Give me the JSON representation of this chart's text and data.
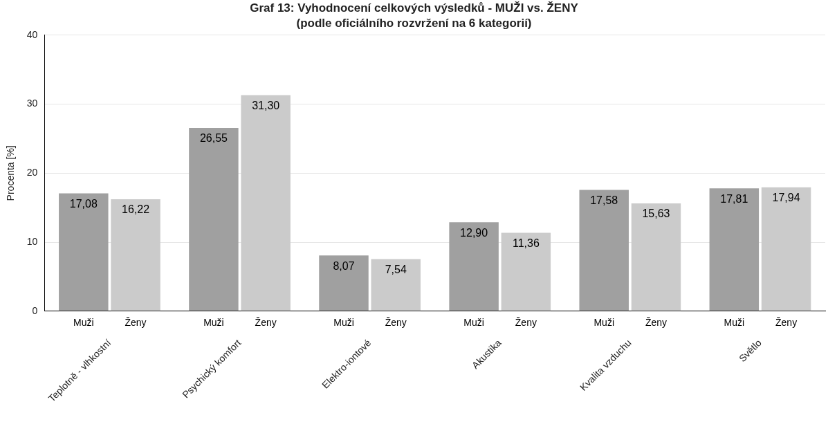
{
  "chart_data": {
    "type": "bar",
    "title": "Graf 13: Vyhodnocení celkových výsledků - MUŽI vs. ŽENY",
    "subtitle": "(podle oficiálního rozvržení na 6 kategorií)",
    "ylabel": "Procenta [%]",
    "categories": [
      "Teplotně - vlhkostní",
      "Psychický komfort",
      "Elektro-iontové",
      "Akustika",
      "Kvalita vzduchu",
      "Světlo"
    ],
    "series": [
      {
        "name": "Muži",
        "color": "#a0a0a0",
        "values": [
          17.08,
          26.55,
          8.07,
          12.9,
          17.58,
          17.81
        ],
        "value_labels": [
          "17,08",
          "26,55",
          "8,07",
          "12,90",
          "17,58",
          "17,81"
        ]
      },
      {
        "name": "Ženy",
        "color": "#cbcbcb",
        "values": [
          16.22,
          31.3,
          7.54,
          11.36,
          15.63,
          17.94
        ],
        "value_labels": [
          "16,22",
          "31,30",
          "7,54",
          "11,36",
          "15,63",
          "17,94"
        ]
      }
    ],
    "ylim": [
      0,
      40
    ],
    "yticks": [
      0,
      10,
      20,
      30,
      40
    ],
    "grid": "y",
    "legend": false
  }
}
